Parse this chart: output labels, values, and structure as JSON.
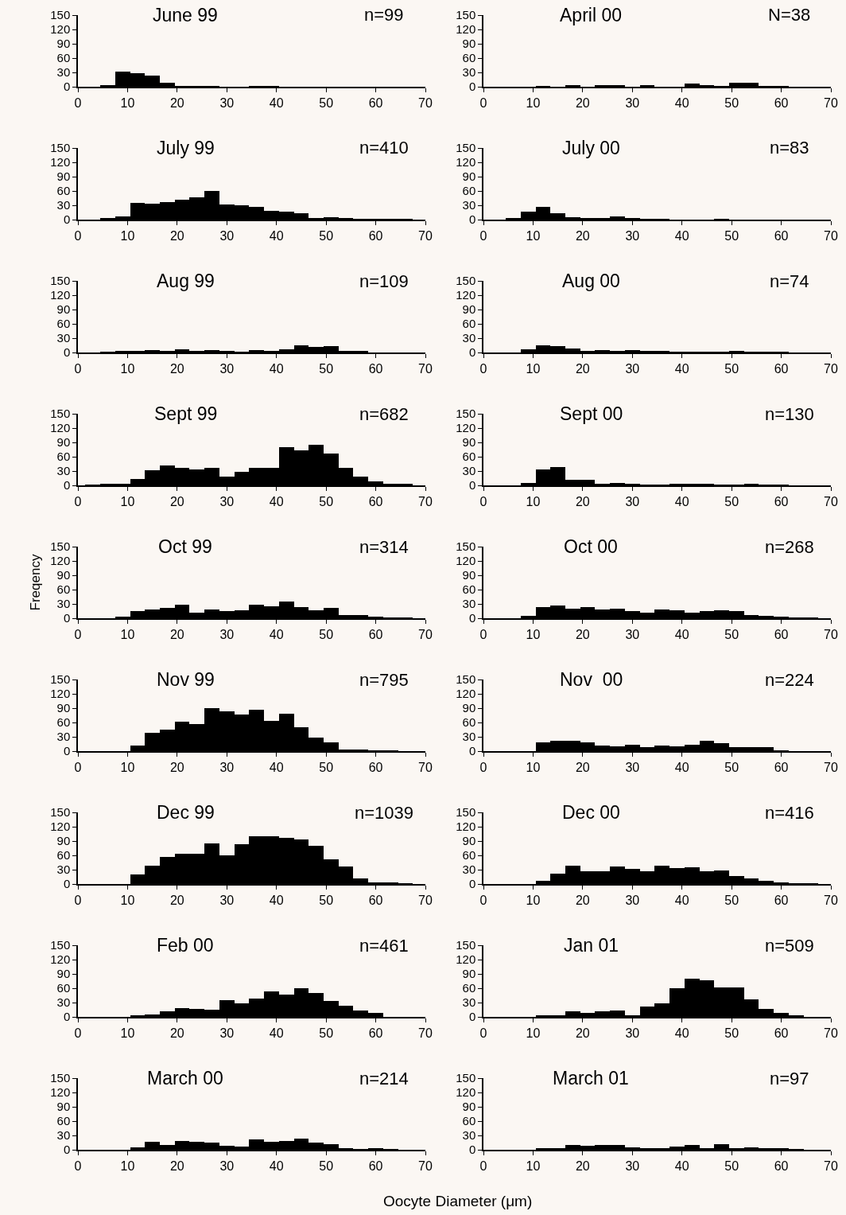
{
  "chart_data": [
    {
      "type": "histogram",
      "title": "June 99",
      "annotations": [
        "n=99"
      ],
      "color": "#000000",
      "bins": [
        1.5,
        4.5,
        7.5,
        10.5,
        13.5,
        16.5,
        19.5,
        22.5,
        25.5,
        28.5,
        31.5,
        34.5,
        37.5,
        40.5,
        43.5,
        46.5,
        49.5,
        52.5,
        55.5,
        58.5,
        61.5,
        64.5,
        67.5
      ],
      "values": [
        0,
        3,
        32,
        28,
        23,
        9,
        1,
        1,
        1,
        0,
        0,
        1,
        1,
        0,
        0,
        0,
        0,
        0,
        0,
        0,
        0,
        0
      ],
      "xlim": [
        0,
        70
      ],
      "xticks": [
        0,
        10,
        20,
        30,
        40,
        50,
        60,
        70
      ],
      "ylim": [
        0,
        150
      ],
      "yticks": [
        0,
        30,
        60,
        90,
        120,
        150
      ],
      "grid": false
    },
    {
      "type": "histogram",
      "title": "April 00",
      "annotations": [
        "N=38"
      ],
      "color": "#000000",
      "bins": [
        1.5,
        4.5,
        7.5,
        10.5,
        13.5,
        16.5,
        19.5,
        22.5,
        25.5,
        28.5,
        31.5,
        34.5,
        37.5,
        40.5,
        43.5,
        46.5,
        49.5,
        52.5,
        55.5,
        58.5,
        61.5,
        64.5,
        67.5
      ],
      "values": [
        0,
        0,
        0,
        1,
        0,
        2,
        0,
        2,
        2,
        0,
        2,
        0,
        0,
        6,
        4,
        1,
        8,
        8,
        1,
        1,
        0,
        0
      ],
      "xlim": [
        0,
        70
      ],
      "xticks": [
        0,
        10,
        20,
        30,
        40,
        50,
        60,
        70
      ],
      "ylim": [
        0,
        150
      ],
      "yticks": [
        0,
        30,
        60,
        90,
        120,
        150
      ],
      "grid": false
    },
    {
      "type": "histogram",
      "title": "July 99",
      "annotations": [
        "n=410"
      ],
      "color": "#000000",
      "bins": [
        1.5,
        4.5,
        7.5,
        10.5,
        13.5,
        16.5,
        19.5,
        22.5,
        25.5,
        28.5,
        31.5,
        34.5,
        37.5,
        40.5,
        43.5,
        46.5,
        49.5,
        52.5,
        55.5,
        58.5,
        61.5,
        64.5,
        67.5
      ],
      "values": [
        0,
        2,
        6,
        35,
        33,
        36,
        41,
        47,
        60,
        32,
        30,
        27,
        18,
        17,
        13,
        3,
        5,
        3,
        1,
        1,
        1,
        1
      ],
      "xlim": [
        0,
        70
      ],
      "xticks": [
        0,
        10,
        20,
        30,
        40,
        50,
        60,
        70
      ],
      "ylim": [
        0,
        150
      ],
      "yticks": [
        0,
        30,
        60,
        90,
        120,
        150
      ],
      "grid": false
    },
    {
      "type": "histogram",
      "title": "July 00",
      "annotations": [
        "n=83"
      ],
      "color": "#000000",
      "bins": [
        1.5,
        4.5,
        7.5,
        10.5,
        13.5,
        16.5,
        19.5,
        22.5,
        25.5,
        28.5,
        31.5,
        34.5,
        37.5,
        40.5,
        43.5,
        46.5,
        49.5,
        52.5,
        55.5,
        58.5,
        61.5,
        64.5,
        67.5
      ],
      "values": [
        0,
        2,
        16,
        27,
        13,
        5,
        4,
        4,
        6,
        2,
        1,
        1,
        0,
        0,
        0,
        1,
        0,
        0,
        0,
        0,
        0,
        0
      ],
      "xlim": [
        0,
        70
      ],
      "xticks": [
        0,
        10,
        20,
        30,
        40,
        50,
        60,
        70
      ],
      "ylim": [
        0,
        150
      ],
      "yticks": [
        0,
        30,
        60,
        90,
        120,
        150
      ],
      "grid": false
    },
    {
      "type": "histogram",
      "title": "Aug 99",
      "annotations": [
        "n=109"
      ],
      "color": "#000000",
      "bins": [
        1.5,
        4.5,
        7.5,
        10.5,
        13.5,
        16.5,
        19.5,
        22.5,
        25.5,
        28.5,
        31.5,
        34.5,
        37.5,
        40.5,
        43.5,
        46.5,
        49.5,
        52.5,
        55.5,
        58.5,
        61.5,
        64.5,
        67.5
      ],
      "values": [
        0,
        1,
        3,
        3,
        5,
        3,
        6,
        4,
        5,
        2,
        1,
        5,
        3,
        6,
        15,
        11,
        13,
        4,
        2,
        0,
        0,
        0
      ],
      "xlim": [
        0,
        70
      ],
      "xticks": [
        0,
        10,
        20,
        30,
        40,
        50,
        60,
        70
      ],
      "ylim": [
        0,
        150
      ],
      "yticks": [
        0,
        30,
        60,
        90,
        120,
        150
      ],
      "grid": false
    },
    {
      "type": "histogram",
      "title": "Aug 00",
      "annotations": [
        "n=74"
      ],
      "color": "#000000",
      "bins": [
        1.5,
        4.5,
        7.5,
        10.5,
        13.5,
        16.5,
        19.5,
        22.5,
        25.5,
        28.5,
        31.5,
        34.5,
        37.5,
        40.5,
        43.5,
        46.5,
        49.5,
        52.5,
        55.5,
        58.5,
        61.5,
        64.5,
        67.5
      ],
      "values": [
        0,
        0,
        6,
        15,
        14,
        9,
        3,
        5,
        3,
        5,
        2,
        2,
        1,
        1,
        1,
        1,
        2,
        1,
        1,
        1,
        0,
        0
      ],
      "xlim": [
        0,
        70
      ],
      "xticks": [
        0,
        10,
        20,
        30,
        40,
        50,
        60,
        70
      ],
      "ylim": [
        0,
        150
      ],
      "yticks": [
        0,
        30,
        60,
        90,
        120,
        150
      ],
      "grid": false
    },
    {
      "type": "histogram",
      "title": "Sept 99",
      "annotations": [
        "n=682"
      ],
      "color": "#000000",
      "bins": [
        1.5,
        4.5,
        7.5,
        10.5,
        13.5,
        16.5,
        19.5,
        22.5,
        25.5,
        28.5,
        31.5,
        34.5,
        37.5,
        40.5,
        43.5,
        46.5,
        49.5,
        52.5,
        55.5,
        58.5,
        61.5,
        64.5,
        67.5
      ],
      "values": [
        1,
        2,
        3,
        13,
        31,
        42,
        37,
        33,
        37,
        18,
        28,
        37,
        36,
        80,
        73,
        85,
        66,
        37,
        18,
        8,
        4,
        2
      ],
      "xlim": [
        0,
        70
      ],
      "xticks": [
        0,
        10,
        20,
        30,
        40,
        50,
        60,
        70
      ],
      "ylim": [
        0,
        150
      ],
      "yticks": [
        0,
        30,
        60,
        90,
        120,
        150
      ],
      "grid": false
    },
    {
      "type": "histogram",
      "title": "Sept 00",
      "annotations": [
        "n=130"
      ],
      "color": "#000000",
      "bins": [
        1.5,
        4.5,
        7.5,
        10.5,
        13.5,
        16.5,
        19.5,
        22.5,
        25.5,
        28.5,
        31.5,
        34.5,
        37.5,
        40.5,
        43.5,
        46.5,
        49.5,
        52.5,
        55.5,
        58.5,
        61.5,
        64.5,
        67.5
      ],
      "values": [
        0,
        0,
        5,
        33,
        38,
        11,
        11,
        3,
        5,
        2,
        1,
        1,
        4,
        3,
        2,
        1,
        1,
        2,
        1,
        1,
        0,
        0
      ],
      "xlim": [
        0,
        70
      ],
      "xticks": [
        0,
        10,
        20,
        30,
        40,
        50,
        60,
        70
      ],
      "ylim": [
        0,
        150
      ],
      "yticks": [
        0,
        30,
        60,
        90,
        120,
        150
      ],
      "grid": false
    },
    {
      "type": "histogram",
      "title": "Oct 99",
      "annotations": [
        "n=314"
      ],
      "ylabel": "Freqency",
      "color": "#000000",
      "bins": [
        1.5,
        4.5,
        7.5,
        10.5,
        13.5,
        16.5,
        19.5,
        22.5,
        25.5,
        28.5,
        31.5,
        34.5,
        37.5,
        40.5,
        43.5,
        46.5,
        49.5,
        52.5,
        55.5,
        58.5,
        61.5,
        64.5,
        67.5
      ],
      "values": [
        0,
        0,
        2,
        15,
        18,
        22,
        29,
        11,
        18,
        15,
        17,
        29,
        25,
        35,
        23,
        17,
        22,
        6,
        6,
        2,
        1,
        1
      ],
      "xlim": [
        0,
        70
      ],
      "xticks": [
        0,
        10,
        20,
        30,
        40,
        50,
        60,
        70
      ],
      "ylim": [
        0,
        150
      ],
      "yticks": [
        0,
        30,
        60,
        90,
        120,
        150
      ],
      "grid": false
    },
    {
      "type": "histogram",
      "title": "Oct 00",
      "annotations": [
        "n=268"
      ],
      "color": "#000000",
      "bins": [
        1.5,
        4.5,
        7.5,
        10.5,
        13.5,
        16.5,
        19.5,
        22.5,
        25.5,
        28.5,
        31.5,
        34.5,
        37.5,
        40.5,
        43.5,
        46.5,
        49.5,
        52.5,
        55.5,
        58.5,
        61.5,
        64.5,
        67.5
      ],
      "values": [
        0,
        0,
        5,
        23,
        27,
        20,
        23,
        19,
        20,
        15,
        11,
        18,
        16,
        11,
        15,
        16,
        15,
        6,
        5,
        4,
        1,
        1
      ],
      "xlim": [
        0,
        70
      ],
      "xticks": [
        0,
        10,
        20,
        30,
        40,
        50,
        60,
        70
      ],
      "ylim": [
        0,
        150
      ],
      "yticks": [
        0,
        30,
        60,
        90,
        120,
        150
      ],
      "grid": false
    },
    {
      "type": "histogram",
      "title": "Nov 99",
      "annotations": [
        "n=795"
      ],
      "color": "#000000",
      "bins": [
        1.5,
        4.5,
        7.5,
        10.5,
        13.5,
        16.5,
        19.5,
        22.5,
        25.5,
        28.5,
        31.5,
        34.5,
        37.5,
        40.5,
        43.5,
        46.5,
        49.5,
        52.5,
        55.5,
        58.5,
        61.5,
        64.5,
        67.5
      ],
      "values": [
        0,
        0,
        0,
        12,
        39,
        45,
        62,
        57,
        90,
        83,
        76,
        86,
        64,
        79,
        50,
        29,
        18,
        2,
        2,
        1,
        1,
        0
      ],
      "xlim": [
        0,
        70
      ],
      "xticks": [
        0,
        10,
        20,
        30,
        40,
        50,
        60,
        70
      ],
      "ylim": [
        0,
        150
      ],
      "yticks": [
        0,
        30,
        60,
        90,
        120,
        150
      ],
      "grid": false
    },
    {
      "type": "histogram",
      "title": "Nov  00",
      "annotations": [
        "n=224"
      ],
      "color": "#000000",
      "bins": [
        1.5,
        4.5,
        7.5,
        10.5,
        13.5,
        16.5,
        19.5,
        22.5,
        25.5,
        28.5,
        31.5,
        34.5,
        37.5,
        40.5,
        43.5,
        46.5,
        49.5,
        52.5,
        55.5,
        58.5,
        61.5,
        64.5,
        67.5
      ],
      "values": [
        0,
        0,
        0,
        19,
        21,
        21,
        18,
        12,
        10,
        13,
        9,
        12,
        10,
        14,
        22,
        16,
        9,
        9,
        9,
        1,
        0,
        0
      ],
      "xlim": [
        0,
        70
      ],
      "xticks": [
        0,
        10,
        20,
        30,
        40,
        50,
        60,
        70
      ],
      "ylim": [
        0,
        150
      ],
      "yticks": [
        0,
        30,
        60,
        90,
        120,
        150
      ],
      "grid": false
    },
    {
      "type": "histogram",
      "title": "Dec 99",
      "annotations": [
        "n=1039"
      ],
      "color": "#000000",
      "bins": [
        1.5,
        4.5,
        7.5,
        10.5,
        13.5,
        16.5,
        19.5,
        22.5,
        25.5,
        28.5,
        31.5,
        34.5,
        37.5,
        40.5,
        43.5,
        46.5,
        49.5,
        52.5,
        55.5,
        58.5,
        61.5,
        64.5,
        67.5
      ],
      "values": [
        0,
        0,
        0,
        20,
        38,
        56,
        63,
        64,
        85,
        60,
        83,
        100,
        100,
        97,
        93,
        80,
        52,
        37,
        12,
        3,
        2,
        1
      ],
      "xlim": [
        0,
        70
      ],
      "xticks": [
        0,
        10,
        20,
        30,
        40,
        50,
        60,
        70
      ],
      "ylim": [
        0,
        150
      ],
      "yticks": [
        0,
        30,
        60,
        90,
        120,
        150
      ],
      "grid": false
    },
    {
      "type": "histogram",
      "title": "Dec 00",
      "annotations": [
        "n=416"
      ],
      "color": "#000000",
      "bins": [
        1.5,
        4.5,
        7.5,
        10.5,
        13.5,
        16.5,
        19.5,
        22.5,
        25.5,
        28.5,
        31.5,
        34.5,
        37.5,
        40.5,
        43.5,
        46.5,
        49.5,
        52.5,
        55.5,
        58.5,
        61.5,
        64.5,
        67.5
      ],
      "values": [
        0,
        0,
        0,
        7,
        21,
        38,
        27,
        27,
        37,
        32,
        26,
        39,
        34,
        35,
        27,
        29,
        17,
        12,
        6,
        2,
        1,
        1
      ],
      "xlim": [
        0,
        70
      ],
      "xticks": [
        0,
        10,
        20,
        30,
        40,
        50,
        60,
        70
      ],
      "ylim": [
        0,
        150
      ],
      "yticks": [
        0,
        30,
        60,
        90,
        120,
        150
      ],
      "grid": false
    },
    {
      "type": "histogram",
      "title": "Feb 00",
      "annotations": [
        "n=461"
      ],
      "color": "#000000",
      "bins": [
        1.5,
        4.5,
        7.5,
        10.5,
        13.5,
        16.5,
        19.5,
        22.5,
        25.5,
        28.5,
        31.5,
        34.5,
        37.5,
        40.5,
        43.5,
        46.5,
        49.5,
        52.5,
        55.5,
        58.5,
        61.5,
        64.5,
        67.5
      ],
      "values": [
        0,
        0,
        0,
        2,
        5,
        12,
        19,
        16,
        15,
        35,
        28,
        39,
        53,
        47,
        60,
        50,
        33,
        24,
        13,
        8,
        0,
        0
      ],
      "xlim": [
        0,
        70
      ],
      "xticks": [
        0,
        10,
        20,
        30,
        40,
        50,
        60,
        70
      ],
      "ylim": [
        0,
        150
      ],
      "yticks": [
        0,
        30,
        60,
        90,
        120,
        150
      ],
      "grid": false
    },
    {
      "type": "histogram",
      "title": "Jan 01",
      "annotations": [
        "n=509"
      ],
      "color": "#000000",
      "bins": [
        1.5,
        4.5,
        7.5,
        10.5,
        13.5,
        16.5,
        19.5,
        22.5,
        25.5,
        28.5,
        31.5,
        34.5,
        37.5,
        40.5,
        43.5,
        46.5,
        49.5,
        52.5,
        55.5,
        58.5,
        61.5,
        64.5,
        67.5
      ],
      "values": [
        0,
        0,
        0,
        3,
        4,
        12,
        8,
        11,
        13,
        3,
        21,
        28,
        60,
        80,
        77,
        61,
        61,
        36,
        17,
        9,
        4,
        0
      ],
      "xlim": [
        0,
        70
      ],
      "xticks": [
        0,
        10,
        20,
        30,
        40,
        50,
        60,
        70
      ],
      "ylim": [
        0,
        150
      ],
      "yticks": [
        0,
        30,
        60,
        90,
        120,
        150
      ],
      "grid": false
    },
    {
      "type": "histogram",
      "title": "March 00",
      "annotations": [
        "n=214"
      ],
      "color": "#000000",
      "bins": [
        1.5,
        4.5,
        7.5,
        10.5,
        13.5,
        16.5,
        19.5,
        22.5,
        25.5,
        28.5,
        31.5,
        34.5,
        37.5,
        40.5,
        43.5,
        46.5,
        49.5,
        52.5,
        55.5,
        58.5,
        61.5,
        64.5,
        67.5
      ],
      "values": [
        0,
        0,
        0,
        5,
        17,
        10,
        19,
        17,
        15,
        8,
        6,
        21,
        17,
        18,
        24,
        15,
        12,
        2,
        1,
        3,
        1,
        0
      ],
      "xlim": [
        0,
        70
      ],
      "xticks": [
        0,
        10,
        20,
        30,
        40,
        50,
        60,
        70
      ],
      "ylim": [
        0,
        150
      ],
      "yticks": [
        0,
        30,
        60,
        90,
        120,
        150
      ],
      "grid": false
    },
    {
      "type": "histogram",
      "title": "March 01",
      "annotations": [
        "n=97"
      ],
      "xlabel": "Oocyte Diameter (μm)",
      "color": "#000000",
      "bins": [
        1.5,
        4.5,
        7.5,
        10.5,
        13.5,
        16.5,
        19.5,
        22.5,
        25.5,
        28.5,
        31.5,
        34.5,
        37.5,
        40.5,
        43.5,
        46.5,
        49.5,
        52.5,
        55.5,
        58.5,
        61.5,
        64.5,
        67.5
      ],
      "values": [
        0,
        0,
        0,
        2,
        3,
        10,
        8,
        10,
        10,
        5,
        4,
        4,
        6,
        10,
        4,
        11,
        4,
        5,
        2,
        2,
        1,
        0
      ],
      "xlim": [
        0,
        70
      ],
      "xticks": [
        0,
        10,
        20,
        30,
        40,
        50,
        60,
        70
      ],
      "ylim": [
        0,
        150
      ],
      "yticks": [
        0,
        30,
        60,
        90,
        120,
        150
      ],
      "grid": false
    }
  ]
}
